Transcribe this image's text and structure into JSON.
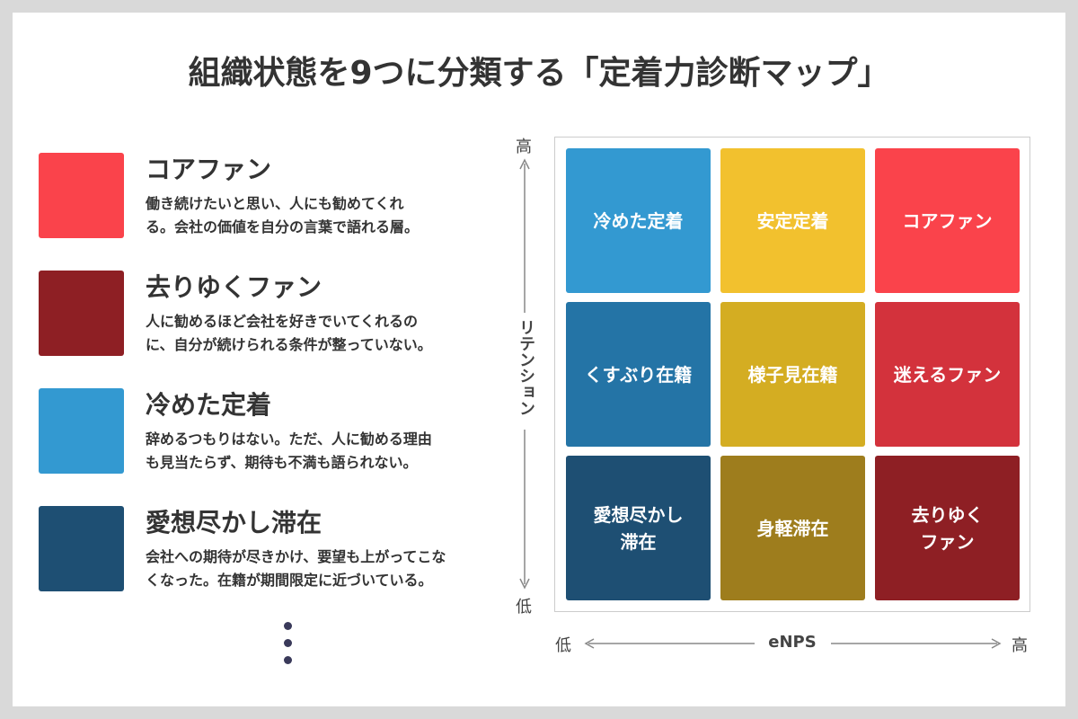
{
  "title": "組織状態を9つに分類する「定着力診断マップ」",
  "legend": [
    {
      "name": "コアファン",
      "color": "#fa434b",
      "description": [
        "働き続けたいと思い、人にも勧めてくれ",
        "る。会社の価値を自分の言葉で語れる層。"
      ]
    },
    {
      "name": "去りゆくファン",
      "color": "#8e1f24",
      "description": [
        "人に勧めるほど会社を好きでいてくれるの",
        "に、自分が続けられる条件が整っていない。"
      ]
    },
    {
      "name": "冷めた定着",
      "color": "#3399d1",
      "description": [
        "辞めるつもりはない。ただ、人に勧める理由",
        "も見当たらず、期待も不満も語られない。"
      ]
    },
    {
      "name": "愛想尽かし滞在",
      "color": "#1e4f73",
      "description": [
        "会社への期待が尽きかけ、要望も上がってこな",
        "くなった。在籍が期間限定に近づいている。"
      ]
    }
  ],
  "matrix": {
    "cells": [
      [
        {
          "lines": [
            "冷めた定着"
          ],
          "color": "#3399d1"
        },
        {
          "lines": [
            "安定定着"
          ],
          "color": "#f2c12e"
        },
        {
          "lines": [
            "コアファン"
          ],
          "color": "#fa434b"
        }
      ],
      [
        {
          "lines": [
            "くすぶり在籍"
          ],
          "color": "#2474a6"
        },
        {
          "lines": [
            "様子見在籍"
          ],
          "color": "#d4ad22"
        },
        {
          "lines": [
            "迷えるファン"
          ],
          "color": "#d3323c"
        }
      ],
      [
        {
          "lines": [
            "愛想尽かし",
            "滞在"
          ],
          "color": "#1e4f73"
        },
        {
          "lines": [
            "身軽滞在"
          ],
          "color": "#9e7d1d"
        },
        {
          "lines": [
            "去りゆく",
            "ファン"
          ],
          "color": "#8e1f24"
        }
      ]
    ]
  },
  "y_axis": {
    "label": "リテンション",
    "high": "高",
    "low": "低"
  },
  "x_axis": {
    "label": "eNPS",
    "low": "低",
    "high": "高"
  }
}
